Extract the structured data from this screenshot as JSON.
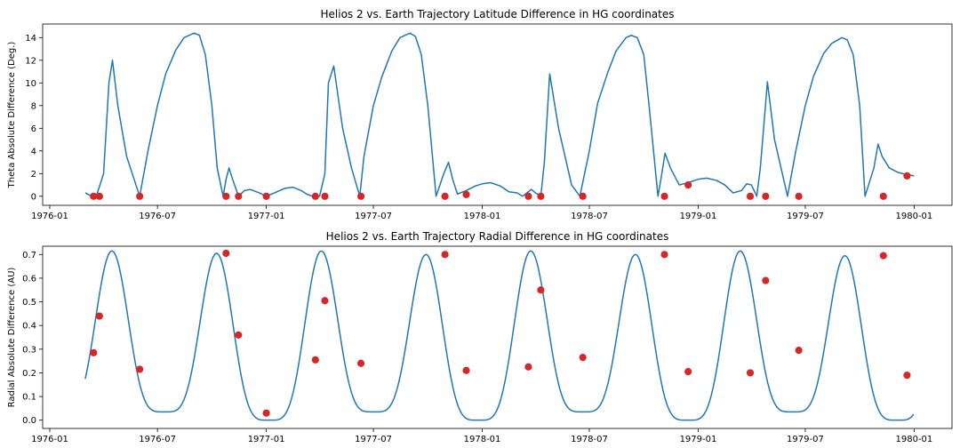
{
  "chart_data": [
    {
      "type": "line",
      "title": "Helios 2 vs. Earth Trajectory Latitude Difference in HG coordinates",
      "xlabel": "",
      "ylabel": "Theta Absolute Difference (Deg.)",
      "xlim": [
        "1975-12-20",
        "1980-03-05"
      ],
      "ylim": [
        -0.8,
        15.2
      ],
      "x_ticks": [
        "1976-01",
        "1976-07",
        "1977-01",
        "1977-07",
        "1978-01",
        "1978-07",
        "1979-01",
        "1979-07",
        "1980-01"
      ],
      "y_ticks": [
        0,
        2,
        4,
        6,
        8,
        10,
        12,
        14
      ],
      "grid": false,
      "line_color": "#1f77b4",
      "marker_color": "#d62728",
      "series": [
        {
          "x": [
            "1976-03-01",
            "1976-03-12",
            "1976-03-20",
            "1976-04-01",
            "1976-04-10",
            "1976-04-16",
            "1976-04-25",
            "1976-05-10",
            "1976-06-01",
            "1976-06-15",
            "1976-07-01",
            "1976-07-15",
            "1976-08-01",
            "1976-08-15",
            "1976-09-01",
            "1976-09-10",
            "1976-09-20",
            "1976-10-01",
            "1976-10-10",
            "1976-10-20",
            "1976-10-25",
            "1976-10-30",
            "1976-11-05",
            "1976-11-15",
            "1976-11-25",
            "1976-12-05",
            "1976-12-20",
            "1977-01-01",
            "1977-01-15",
            "1977-02-01",
            "1977-02-15",
            "1977-03-01",
            "1977-03-10",
            "1977-03-20",
            "1977-03-25",
            "1977-04-01",
            "1977-04-10",
            "1977-04-16",
            "1977-04-25",
            "1977-05-10",
            "1977-05-25",
            "1977-06-08",
            "1977-06-15",
            "1977-07-01",
            "1977-07-15",
            "1977-08-01",
            "1977-08-15",
            "1977-09-01",
            "1977-09-10",
            "1977-09-20",
            "1977-10-01",
            "1977-10-15",
            "1977-10-28",
            "1977-11-05",
            "1977-11-12",
            "1977-11-20",
            "1977-12-05",
            "1977-12-20",
            "1978-01-01",
            "1978-01-15",
            "1978-02-01",
            "1978-02-15",
            "1978-03-01",
            "1978-03-10",
            "1978-03-25",
            "1978-04-01",
            "1978-04-10",
            "1978-04-16",
            "1978-04-25",
            "1978-05-10",
            "1978-06-01",
            "1978-06-15",
            "1978-07-01",
            "1978-07-15",
            "1978-08-01",
            "1978-08-15",
            "1978-09-01",
            "1978-09-10",
            "1978-09-20",
            "1978-10-01",
            "1978-10-10",
            "1978-10-25",
            "1978-10-30",
            "1978-11-06",
            "1978-11-15",
            "1978-11-30",
            "1978-12-15",
            "1979-01-01",
            "1979-01-15",
            "1979-02-01",
            "1979-02-15",
            "1979-03-01",
            "1979-03-15",
            "1979-03-24",
            "1979-04-01",
            "1979-04-10",
            "1979-04-16",
            "1979-04-20",
            "1979-04-28",
            "1979-05-10",
            "1979-06-01",
            "1979-06-15",
            "1979-07-01",
            "1979-07-15",
            "1979-08-01",
            "1979-08-15",
            "1979-09-01",
            "1979-09-10",
            "1979-09-20",
            "1979-10-01",
            "1979-10-10",
            "1979-10-25",
            "1979-11-01",
            "1979-11-08",
            "1979-11-20",
            "1979-12-05",
            "1979-12-20",
            "1980-01-01"
          ],
          "y": [
            0.3,
            0.0,
            0.05,
            2.0,
            10.0,
            12.0,
            8.0,
            3.5,
            0.0,
            4.0,
            8.0,
            10.8,
            12.9,
            14.0,
            14.4,
            14.2,
            12.5,
            8.0,
            2.5,
            0.0,
            1.5,
            2.5,
            1.5,
            0.0,
            0.5,
            0.6,
            0.3,
            0.0,
            0.3,
            0.7,
            0.8,
            0.5,
            0.2,
            0.0,
            0.0,
            0.0,
            2.0,
            10.0,
            11.5,
            6.0,
            2.5,
            0.0,
            3.5,
            8.0,
            10.5,
            12.8,
            14.0,
            14.4,
            14.1,
            12.5,
            8.0,
            0.0,
            2.0,
            3.0,
            1.5,
            0.2,
            0.5,
            0.9,
            1.1,
            1.2,
            0.9,
            0.4,
            0.3,
            0.0,
            0.6,
            0.3,
            0.0,
            3.0,
            10.8,
            6.0,
            1.0,
            0.0,
            4.0,
            8.2,
            10.9,
            12.8,
            14.0,
            14.2,
            14.0,
            12.5,
            8.0,
            0.0,
            1.5,
            3.8,
            2.5,
            1.0,
            1.2,
            1.5,
            1.6,
            1.4,
            1.0,
            0.3,
            0.5,
            1.1,
            1.0,
            0.0,
            2.5,
            5.0,
            10.1,
            5.0,
            0.0,
            4.0,
            8.0,
            10.6,
            12.6,
            13.5,
            14.0,
            13.8,
            12.5,
            8.0,
            0.0,
            2.5,
            4.6,
            3.5,
            2.5,
            2.1,
            1.9,
            1.8
          ]
        },
        {
          "name": "",
          "type": "scatter",
          "x": [
            "1976-03-15",
            "1976-03-25",
            "1976-06-01",
            "1976-10-25",
            "1976-11-15",
            "1977-01-01",
            "1977-03-25",
            "1977-04-10",
            "1977-06-10",
            "1977-10-30",
            "1977-12-05",
            "1978-03-20",
            "1978-04-10",
            "1978-06-20",
            "1978-11-05",
            "1978-12-15",
            "1979-03-30",
            "1979-04-25",
            "1979-06-20",
            "1979-11-10",
            "1979-12-20"
          ],
          "y": [
            0.0,
            0.0,
            0.0,
            0.0,
            0.0,
            0.0,
            0.0,
            0.0,
            0.0,
            0.0,
            0.15,
            0.0,
            0.0,
            0.0,
            0.0,
            1.0,
            0.0,
            0.0,
            0.0,
            0.0,
            1.8
          ]
        }
      ]
    },
    {
      "type": "line",
      "title": "Helios 2 vs. Earth Trajectory Radial Difference in HG coordinates",
      "xlabel": "",
      "ylabel": "Radial Absolute Difference (AU)",
      "xlim": [
        "1975-12-20",
        "1980-03-05"
      ],
      "ylim": [
        -0.035,
        0.735
      ],
      "x_ticks": [
        "1976-01",
        "1976-07",
        "1977-01",
        "1977-07",
        "1978-01",
        "1978-07",
        "1979-01",
        "1979-07",
        "1980-01"
      ],
      "y_ticks": [
        0.0,
        0.1,
        0.2,
        0.3,
        0.4,
        0.5,
        0.6,
        0.7
      ],
      "grid": false,
      "line_color": "#1f77b4",
      "marker_color": "#d62728",
      "radial_model": {
        "first_peak": "1976-04-15",
        "period_days": 177,
        "peak_values": [
          0.715,
          0.705,
          0.715,
          0.7,
          0.715,
          0.7,
          0.715,
          0.695
        ],
        "trough_values": [
          0.035,
          0.0,
          0.035,
          0.0,
          0.035,
          0.0,
          0.035,
          0.0
        ],
        "start": "1976-03-01",
        "end": "1980-01-01"
      },
      "series": [
        {
          "name": "",
          "type": "scatter",
          "x": [
            "1976-03-15",
            "1976-03-25",
            "1976-06-01",
            "1976-10-25",
            "1976-11-15",
            "1977-01-01",
            "1977-03-25",
            "1977-04-10",
            "1977-06-10",
            "1977-10-30",
            "1977-12-05",
            "1978-03-20",
            "1978-04-10",
            "1978-06-20",
            "1978-11-05",
            "1978-12-15",
            "1979-03-30",
            "1979-04-25",
            "1979-06-20",
            "1979-11-10",
            "1979-12-20"
          ],
          "y": [
            0.285,
            0.44,
            0.215,
            0.705,
            0.36,
            0.03,
            0.255,
            0.505,
            0.24,
            0.7,
            0.21,
            0.225,
            0.55,
            0.265,
            0.7,
            0.205,
            0.2,
            0.59,
            0.295,
            0.695,
            0.19
          ]
        }
      ]
    }
  ]
}
